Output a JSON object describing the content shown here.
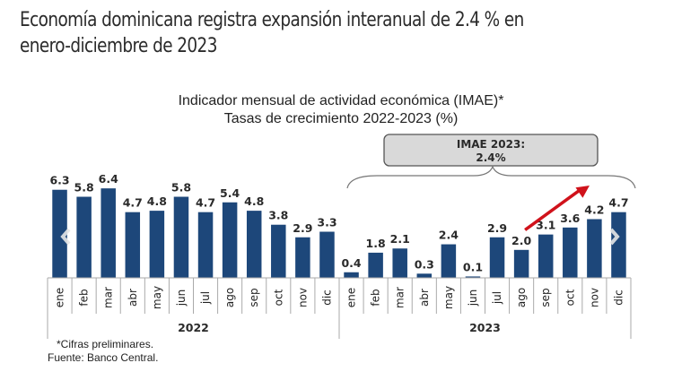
{
  "page": {
    "headline_line1": "Economía dominicana registra expansión interanual de 2.4 % en",
    "headline_line2": "enero-diciembre de 2023"
  },
  "chart_data": {
    "type": "bar",
    "title": "Indicador mensual de actividad económica (IMAE)*",
    "subtitle": "Tasas de crecimiento 2022-2023 (%)",
    "xlabel": "",
    "ylabel": "",
    "ylim": [
      0,
      7
    ],
    "grid": false,
    "bar_color": "#1d477a",
    "arrow_color": "#d0121b",
    "categories": [
      "ene",
      "feb",
      "mar",
      "abr",
      "may",
      "jun",
      "jul",
      "ago",
      "sep",
      "oct",
      "nov",
      "dic",
      "ene",
      "feb",
      "mar",
      "abr",
      "may",
      "jun",
      "jul",
      "ago",
      "sep",
      "oct",
      "nov",
      "dic"
    ],
    "groups": [
      {
        "label": "2022",
        "months": [
          "ene",
          "feb",
          "mar",
          "abr",
          "may",
          "jun",
          "jul",
          "ago",
          "sep",
          "oct",
          "nov",
          "dic"
        ],
        "values": [
          6.3,
          5.8,
          6.4,
          4.7,
          4.8,
          5.8,
          4.7,
          5.4,
          4.8,
          3.8,
          2.9,
          3.3
        ]
      },
      {
        "label": "2023",
        "months": [
          "ene",
          "feb",
          "mar",
          "abr",
          "may",
          "jun",
          "jul",
          "ago",
          "sep",
          "oct",
          "nov",
          "dic"
        ],
        "values": [
          0.4,
          1.8,
          2.1,
          0.3,
          2.4,
          0.1,
          2.9,
          2.0,
          3.1,
          3.6,
          4.2,
          4.7
        ]
      }
    ],
    "series": [
      {
        "name": "IMAE",
        "values": [
          6.3,
          5.8,
          6.4,
          4.7,
          4.8,
          5.8,
          4.7,
          5.4,
          4.8,
          3.8,
          2.9,
          3.3,
          0.4,
          1.8,
          2.1,
          0.3,
          2.4,
          0.1,
          2.9,
          2.0,
          3.1,
          3.6,
          4.2,
          4.7
        ]
      }
    ],
    "value_labels": [
      "6.3",
      "5.8",
      "6.4",
      "4.7",
      "4.8",
      "5.8",
      "4.7",
      "5.4",
      "4.8",
      "3.8",
      "2.9",
      "3.3",
      "0.4",
      "1.8",
      "2.1",
      "0.3",
      "2.4",
      "0.1",
      "2.9",
      "2.0",
      "3.1",
      "3.6",
      "4.2",
      "4.7"
    ],
    "annotation": {
      "line1": "IMAE 2023:",
      "line2": "2.4%",
      "applies_to_group": "2023"
    },
    "trend_arrow": {
      "from_category_index": 19,
      "to_category_index": 22,
      "direction": "up"
    },
    "footnotes": [
      "*Cifras preliminares.",
      "Fuente: Banco Central."
    ]
  }
}
